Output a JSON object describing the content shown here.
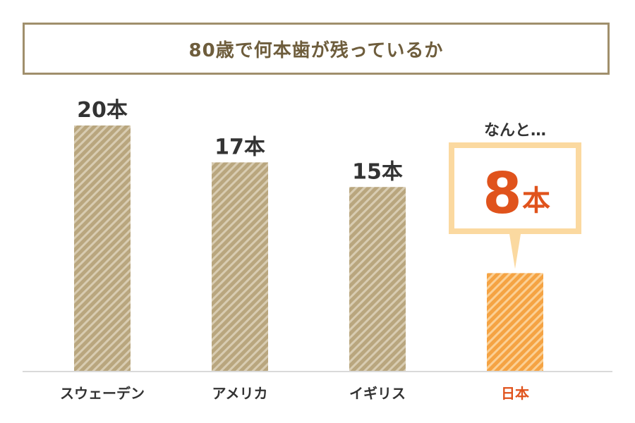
{
  "chart_data": {
    "type": "bar",
    "title": "80歳で何本歯が残っているか",
    "categories": [
      "スウェーデン",
      "アメリカ",
      "イギリス",
      "日本"
    ],
    "values": [
      20,
      17,
      15,
      8
    ],
    "value_labels": [
      "20本",
      "17本",
      "15本",
      "8本"
    ],
    "highlight_index": 3,
    "ylim": [
      0,
      20
    ],
    "grid": false,
    "callout": {
      "prefix": "なんと…",
      "number": "8",
      "unit": "本"
    },
    "colors": {
      "bar": "#b9a67e",
      "bar_stripe": "#d8ccb2",
      "highlight_bar": "#f5a343",
      "highlight_stripe": "#fbd095",
      "highlight_text": "#e0531c",
      "callout_border": "#fbd9a0",
      "title_border": "#a08f6c",
      "title_text": "#6e5d3c",
      "axis": "#d9d9d9"
    }
  }
}
